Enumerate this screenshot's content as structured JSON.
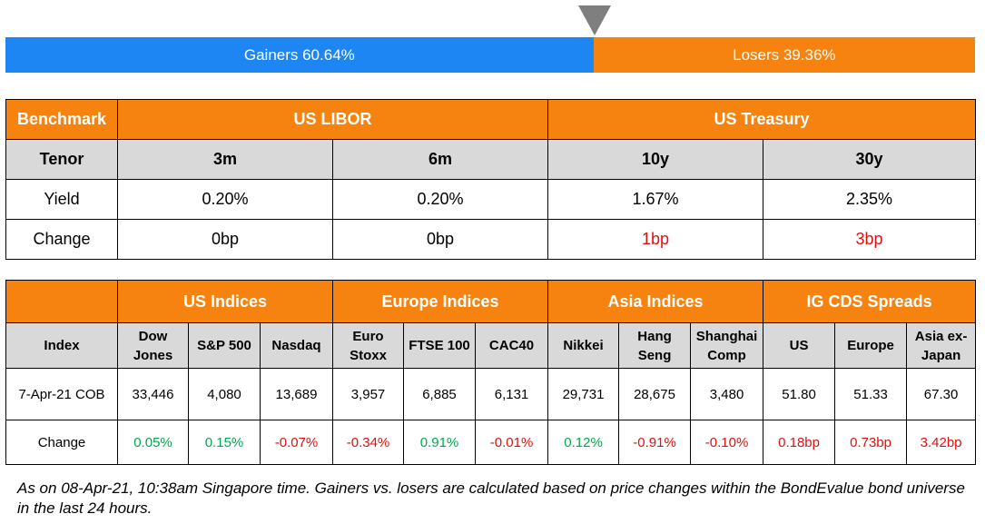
{
  "sentiment": {
    "gainers_pct": 60.64,
    "gainers_label": "Gainers 60.64%",
    "losers_label": "Losers 39.36%"
  },
  "rates": {
    "col_benchmark": "Benchmark",
    "group_libor": "US LIBOR",
    "group_treasury": "US Treasury",
    "row_tenor": "Tenor",
    "tenors": [
      "3m",
      "6m",
      "10y",
      "30y"
    ],
    "row_yield": "Yield",
    "yields": [
      "0.20%",
      "0.20%",
      "1.67%",
      "2.35%"
    ],
    "row_change": "Change",
    "changes": [
      "0bp",
      "0bp",
      "1bp",
      "3bp"
    ]
  },
  "markets": {
    "groups": [
      "US Indices",
      "Europe Indices",
      "Asia Indices",
      "IG CDS Spreads"
    ],
    "col_index": "Index",
    "indices": [
      [
        "Dow",
        "Jones"
      ],
      [
        "S&P 500"
      ],
      [
        "Nasdaq"
      ],
      [
        "Euro",
        "Stoxx"
      ],
      [
        "FTSE 100"
      ],
      [
        "CAC40"
      ],
      [
        "Nikkei"
      ],
      [
        "Hang",
        "Seng"
      ],
      [
        "Shanghai",
        "Comp"
      ],
      [
        "US"
      ],
      [
        "Europe"
      ],
      [
        "Asia ex-",
        "Japan"
      ]
    ],
    "row_values": "7-Apr-21 COB",
    "values": [
      "33,446",
      "4,080",
      "13,689",
      "3,957",
      "6,885",
      "6,131",
      "29,731",
      "28,675",
      "3,480",
      "51.80",
      "51.33",
      "67.30"
    ],
    "row_change": "Change",
    "changes": [
      "0.05%",
      "0.15%",
      "-0.07%",
      "-0.34%",
      "0.91%",
      "-0.01%",
      "0.12%",
      "-0.91%",
      "-0.10%",
      "0.18bp",
      "0.73bp",
      "3.42bp"
    ]
  },
  "colors": {
    "orange": "#f6830f",
    "blue": "#1e86f2",
    "grey_header": "#d9d9d9",
    "up": "#00a94f",
    "down": "#e01010"
  },
  "footnote": "As on 08-Apr-21, 10:38am Singapore time. Gainers vs. losers are calculated based on price changes within the BondEvalue bond universe in the last 24 hours."
}
